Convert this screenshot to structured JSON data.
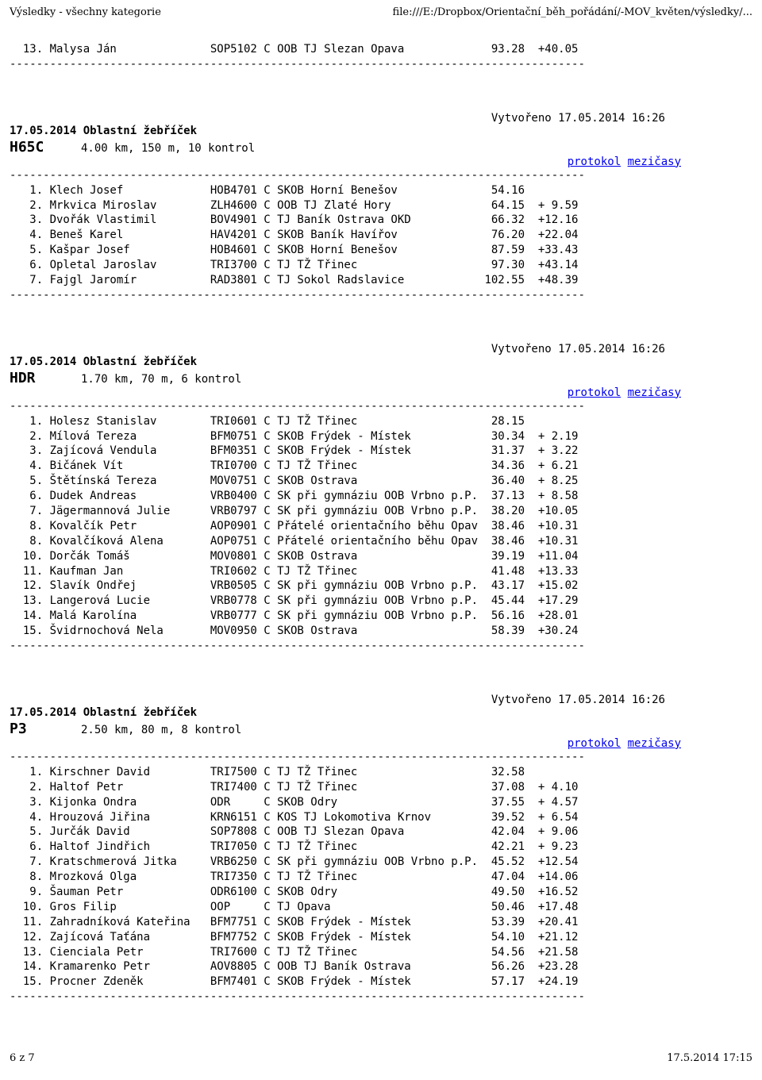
{
  "header": {
    "left": "Výsledky - všechny kategorie",
    "right": "file:///E:/Dropbox/Orientační_běh_pořádání/-MOV_květen/výsledky/..."
  },
  "footer": {
    "left": "6 z 7",
    "right": "17.5.2014 17:15"
  },
  "links": {
    "protokol": "protokol",
    "mezicasy": "mezičasy"
  },
  "divider": "--------------------------------------------------------------------------------------",
  "topBlock": {
    "rows": [
      {
        "pos": "13",
        "name": "Malysa Ján",
        "code": "SOP5102",
        "lic": "C",
        "club": "OOB TJ Slezan Opava",
        "time": "93.28",
        "diff": "+40.05"
      }
    ]
  },
  "sections": [
    {
      "created": "Vytvořeno 17.05.2014 16:26",
      "title": "17.05.2014 Oblastní žebříček",
      "category": "H65C",
      "course": "4.00 km, 150 m, 10 kontrol",
      "rows": [
        {
          "pos": " 1",
          "name": "Klech Josef",
          "code": "HOB4701",
          "lic": "C",
          "club": "SKOB Horní Benešov",
          "time": " 54.16",
          "diff": ""
        },
        {
          "pos": " 2",
          "name": "Mrkvica Miroslav",
          "code": "ZLH4600",
          "lic": "C",
          "club": "OOB TJ Zlaté Hory",
          "time": " 64.15",
          "diff": "+ 9.59"
        },
        {
          "pos": " 3",
          "name": "Dvořák Vlastimil",
          "code": "BOV4901",
          "lic": "C",
          "club": "TJ Baník Ostrava OKD",
          "time": " 66.32",
          "diff": "+12.16"
        },
        {
          "pos": " 4",
          "name": "Beneš Karel",
          "code": "HAV4201",
          "lic": "C",
          "club": "SKOB Baník Havířov",
          "time": " 76.20",
          "diff": "+22.04"
        },
        {
          "pos": " 5",
          "name": "Kašpar Josef",
          "code": "HOB4601",
          "lic": "C",
          "club": "SKOB Horní Benešov",
          "time": " 87.59",
          "diff": "+33.43"
        },
        {
          "pos": " 6",
          "name": "Opletal Jaroslav",
          "code": "TRI3700",
          "lic": "C",
          "club": "TJ TŽ Třinec",
          "time": " 97.30",
          "diff": "+43.14"
        },
        {
          "pos": " 7",
          "name": "Fajgl Jaromír",
          "code": "RAD3801",
          "lic": "C",
          "club": "TJ Sokol Radslavice",
          "time": "102.55",
          "diff": "+48.39"
        }
      ]
    },
    {
      "created": "Vytvořeno 17.05.2014 16:26",
      "title": "17.05.2014 Oblastní žebříček",
      "category": "HDR",
      "course": "1.70 km, 70 m, 6 kontrol",
      "rows": [
        {
          "pos": " 1",
          "name": "Holesz Stanislav",
          "code": "TRI0601",
          "lic": "C",
          "club": "TJ TŽ Třinec",
          "time": "28.15",
          "diff": ""
        },
        {
          "pos": " 2",
          "name": "Mílová Tereza",
          "code": "BFM0751",
          "lic": "C",
          "club": "SKOB Frýdek - Místek",
          "time": "30.34",
          "diff": "+ 2.19"
        },
        {
          "pos": " 3",
          "name": "Zajícová Vendula",
          "code": "BFM0351",
          "lic": "C",
          "club": "SKOB Frýdek - Místek",
          "time": "31.37",
          "diff": "+ 3.22"
        },
        {
          "pos": " 4",
          "name": "Bičánek Vít",
          "code": "TRI0700",
          "lic": "C",
          "club": "TJ TŽ Třinec",
          "time": "34.36",
          "diff": "+ 6.21"
        },
        {
          "pos": " 5",
          "name": "Štětínská Tereza",
          "code": "MOV0751",
          "lic": "C",
          "club": "SKOB Ostrava",
          "time": "36.40",
          "diff": "+ 8.25"
        },
        {
          "pos": " 6",
          "name": "Dudek Andreas",
          "code": "VRB0400",
          "lic": "C",
          "club": "SK při gymnáziu OOB Vrbno p.P.",
          "time": "37.13",
          "diff": "+ 8.58"
        },
        {
          "pos": " 7",
          "name": "Jägermannová Julie",
          "code": "VRB0797",
          "lic": "C",
          "club": "SK při gymnáziu OOB Vrbno p.P.",
          "time": "38.20",
          "diff": "+10.05"
        },
        {
          "pos": " 8",
          "name": "Kovalčík Petr",
          "code": "AOP0901",
          "lic": "C",
          "club": "Přátelé orientačního běhu Opav",
          "time": "38.46",
          "diff": "+10.31"
        },
        {
          "pos": " 8",
          "name": "Kovalčíková Alena",
          "code": "AOP0751",
          "lic": "C",
          "club": "Přátelé orientačního běhu Opav",
          "time": "38.46",
          "diff": "+10.31"
        },
        {
          "pos": "10",
          "name": "Dorčák Tomáš",
          "code": "MOV0801",
          "lic": "C",
          "club": "SKOB Ostrava",
          "time": "39.19",
          "diff": "+11.04"
        },
        {
          "pos": "11",
          "name": "Kaufman Jan",
          "code": "TRI0602",
          "lic": "C",
          "club": "TJ TŽ Třinec",
          "time": "41.48",
          "diff": "+13.33"
        },
        {
          "pos": "12",
          "name": "Slavík Ondřej",
          "code": "VRB0505",
          "lic": "C",
          "club": "SK při gymnáziu OOB Vrbno p.P.",
          "time": "43.17",
          "diff": "+15.02"
        },
        {
          "pos": "13",
          "name": "Langerová Lucie",
          "code": "VRB0778",
          "lic": "C",
          "club": "SK při gymnáziu OOB Vrbno p.P.",
          "time": "45.44",
          "diff": "+17.29"
        },
        {
          "pos": "14",
          "name": "Malá Karolína",
          "code": "VRB0777",
          "lic": "C",
          "club": "SK při gymnáziu OOB Vrbno p.P.",
          "time": "56.16",
          "diff": "+28.01"
        },
        {
          "pos": "15",
          "name": "Švidrnochová Nela",
          "code": "MOV0950",
          "lic": "C",
          "club": "SKOB Ostrava",
          "time": "58.39",
          "diff": "+30.24"
        }
      ]
    },
    {
      "created": "Vytvořeno 17.05.2014 16:26",
      "title": "17.05.2014 Oblastní žebříček",
      "category": "P3",
      "course": "2.50 km, 80 m, 8 kontrol",
      "rows": [
        {
          "pos": " 1",
          "name": "Kirschner David",
          "code": "TRI7500",
          "lic": "C",
          "club": "TJ TŽ Třinec",
          "time": "32.58",
          "diff": ""
        },
        {
          "pos": " 2",
          "name": "Haltof Petr",
          "code": "TRI7400",
          "lic": "C",
          "club": "TJ TŽ Třinec",
          "time": "37.08",
          "diff": "+ 4.10"
        },
        {
          "pos": " 3",
          "name": "Kijonka Ondra",
          "code": "ODR    ",
          "lic": "C",
          "club": "SKOB Odry",
          "time": "37.55",
          "diff": "+ 4.57"
        },
        {
          "pos": " 4",
          "name": "Hrouzová Jiřina",
          "code": "KRN6151",
          "lic": "C",
          "club": "KOS TJ Lokomotiva Krnov",
          "time": "39.52",
          "diff": "+ 6.54"
        },
        {
          "pos": " 5",
          "name": "Jurčák David",
          "code": "SOP7808",
          "lic": "C",
          "club": "OOB TJ Slezan Opava",
          "time": "42.04",
          "diff": "+ 9.06"
        },
        {
          "pos": " 6",
          "name": "Haltof Jindřich",
          "code": "TRI7050",
          "lic": "C",
          "club": "TJ TŽ Třinec",
          "time": "42.21",
          "diff": "+ 9.23"
        },
        {
          "pos": " 7",
          "name": "Kratschmerová Jitka",
          "code": "VRB6250",
          "lic": "C",
          "club": "SK při gymnáziu OOB Vrbno p.P.",
          "time": "45.52",
          "diff": "+12.54"
        },
        {
          "pos": " 8",
          "name": "Mrozková Olga",
          "code": "TRI7350",
          "lic": "C",
          "club": "TJ TŽ Třinec",
          "time": "47.04",
          "diff": "+14.06"
        },
        {
          "pos": " 9",
          "name": "Šauman Petr",
          "code": "ODR6100",
          "lic": "C",
          "club": "SKOB Odry",
          "time": "49.50",
          "diff": "+16.52"
        },
        {
          "pos": "10",
          "name": "Gros Filip",
          "code": "OOP    ",
          "lic": "C",
          "club": "TJ Opava",
          "time": "50.46",
          "diff": "+17.48"
        },
        {
          "pos": "11",
          "name": "Zahradníková Kateřina",
          "code": "BFM7751",
          "lic": "C",
          "club": "SKOB Frýdek - Místek",
          "time": "53.39",
          "diff": "+20.41"
        },
        {
          "pos": "12",
          "name": "Zajícová Taťána",
          "code": "BFM7752",
          "lic": "C",
          "club": "SKOB Frýdek - Místek",
          "time": "54.10",
          "diff": "+21.12"
        },
        {
          "pos": "13",
          "name": "Cienciala Petr",
          "code": "TRI7600",
          "lic": "C",
          "club": "TJ TŽ Třinec",
          "time": "54.56",
          "diff": "+21.58"
        },
        {
          "pos": "14",
          "name": "Kramarenko Petr",
          "code": "AOV8805",
          "lic": "C",
          "club": "OOB TJ Baník Ostrava",
          "time": "56.26",
          "diff": "+23.28"
        },
        {
          "pos": "15",
          "name": "Procner Zdeněk",
          "code": "BFM7401",
          "lic": "C",
          "club": "SKOB Frýdek - Místek",
          "time": "57.17",
          "diff": "+24.19"
        }
      ]
    }
  ]
}
